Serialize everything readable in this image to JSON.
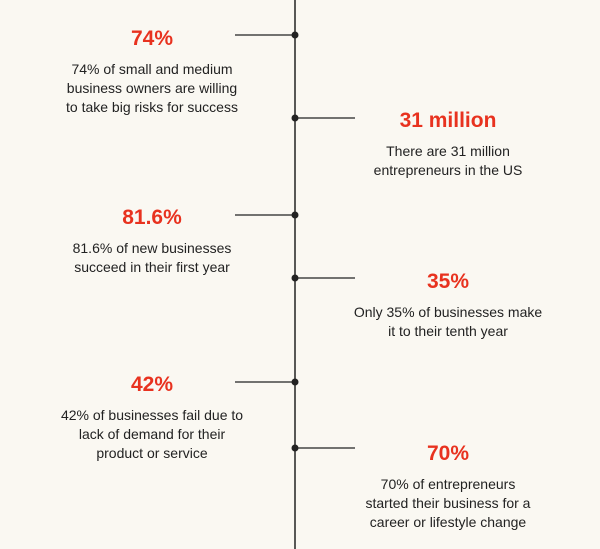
{
  "items": [
    {
      "stat": "74%",
      "lines": [
        "74% of small and medium",
        "business owners are willing",
        "to take big risks for success"
      ]
    },
    {
      "stat": "31 million",
      "lines": [
        "There are 31 million",
        "entrepreneurs in the US"
      ]
    },
    {
      "stat": "81.6%",
      "lines": [
        "81.6% of new businesses",
        "succeed in their first year"
      ]
    },
    {
      "stat": "35%",
      "lines": [
        "Only 35% of businesses make",
        "it to their tenth year"
      ]
    },
    {
      "stat": "42%",
      "lines": [
        "42% of businesses fail due to",
        "lack of demand for their",
        "product or service"
      ]
    },
    {
      "stat": "70%",
      "lines": [
        "70% of entrepreneurs",
        "started their business for a",
        "career or lifestyle change"
      ]
    }
  ]
}
